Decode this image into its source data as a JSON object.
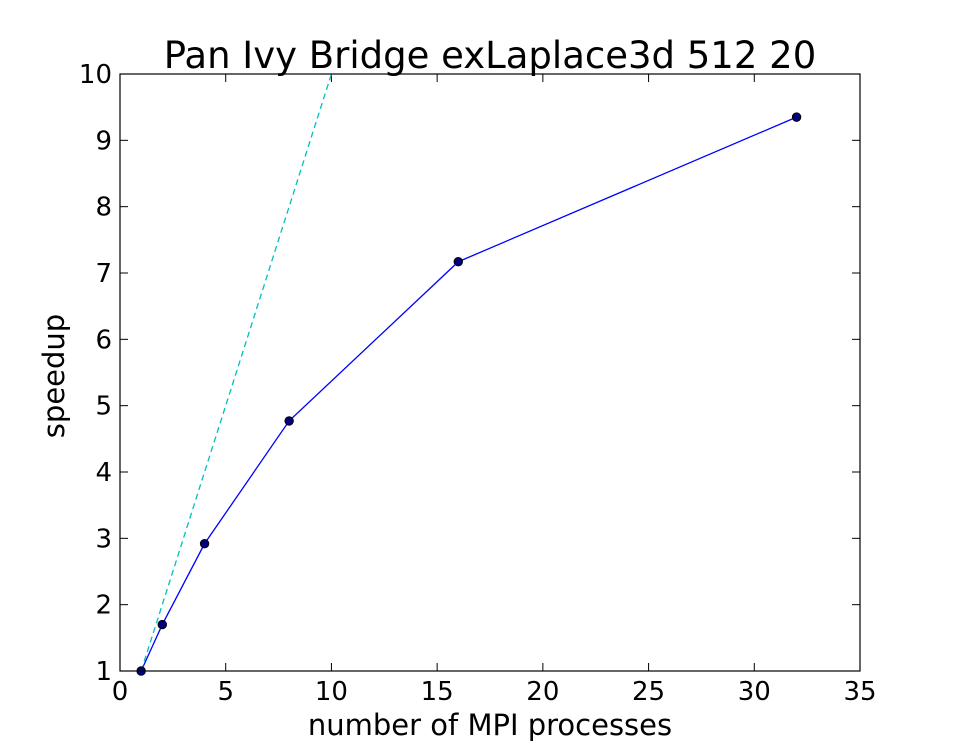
{
  "chart_data": {
    "type": "line",
    "title": "Pan Ivy Bridge exLaplace3d 512 20",
    "xlabel": "number of MPI processes",
    "ylabel": "speedup",
    "xlim": [
      0,
      35
    ],
    "ylim": [
      1,
      10
    ],
    "xticks": [
      0,
      5,
      10,
      15,
      20,
      25,
      30,
      35
    ],
    "yticks": [
      1,
      2,
      3,
      4,
      5,
      6,
      7,
      8,
      9,
      10
    ],
    "grid": false,
    "legend": "none",
    "series": [
      {
        "style": "solid-line-with-circle-markers",
        "color": "#0000ff",
        "marker_color": "#000080",
        "x": [
          1,
          2,
          4,
          8,
          16,
          32
        ],
        "y": [
          1.0,
          1.7,
          2.92,
          4.77,
          7.17,
          9.35
        ]
      },
      {
        "style": "dashed-line",
        "color": "#00bfbf",
        "x": [
          1,
          10
        ],
        "y": [
          1,
          10
        ]
      }
    ]
  }
}
